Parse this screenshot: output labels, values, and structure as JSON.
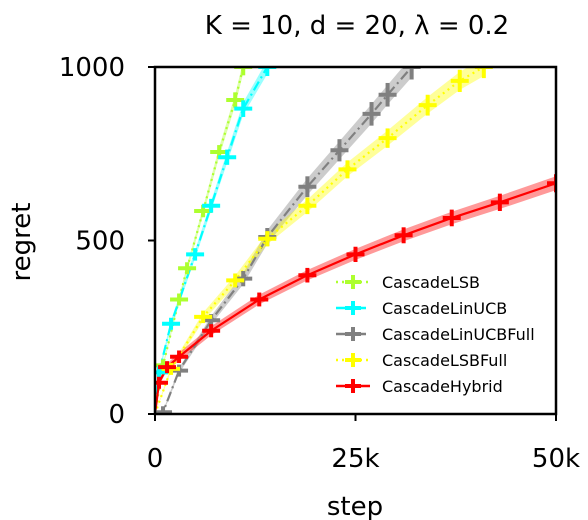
{
  "chart_data": {
    "type": "line",
    "title": "K = 10, d = 20, λ = 0.2",
    "xlabel": "step",
    "ylabel": "regret",
    "xlim": [
      0,
      50000
    ],
    "ylim": [
      0,
      1000
    ],
    "xticks": [
      0,
      25000,
      50000
    ],
    "xtick_labels": [
      "0",
      "25k",
      "50k"
    ],
    "yticks": [
      0,
      500,
      1000
    ],
    "ytick_labels": [
      "0",
      "500",
      "1000"
    ],
    "grid": false,
    "legend_position": "lower-right",
    "series": [
      {
        "name": "CascadeLSB",
        "color": "#adff2f",
        "linestyle": "dotted",
        "x": [
          0,
          1000,
          3000,
          4000,
          6000,
          8000,
          10000,
          11000
        ],
        "y": [
          0,
          140,
          330,
          420,
          585,
          755,
          905,
          1000
        ],
        "err": [
          0,
          6,
          8,
          10,
          12,
          14,
          16,
          18
        ]
      },
      {
        "name": "CascadeLinUCB",
        "color": "#00ffff",
        "linestyle": "dashdot",
        "x": [
          0,
          500,
          2000,
          5000,
          7000,
          9000,
          11000,
          14000
        ],
        "y": [
          0,
          120,
          260,
          460,
          600,
          740,
          880,
          1000
        ],
        "err": [
          0,
          6,
          10,
          12,
          14,
          16,
          18,
          20
        ]
      },
      {
        "name": "CascadeLinUCBFull",
        "color": "#808080",
        "linestyle": "dashdot",
        "x": [
          0,
          1000,
          3000,
          7000,
          11000,
          14000,
          19000,
          23000,
          27000,
          29000,
          32000
        ],
        "y": [
          0,
          5,
          125,
          270,
          390,
          510,
          655,
          760,
          865,
          920,
          1000
        ],
        "err": [
          0,
          4,
          8,
          12,
          16,
          20,
          24,
          26,
          28,
          28,
          30
        ]
      },
      {
        "name": "CascadeLSBFull",
        "color": "#ffff00",
        "linestyle": "dotted",
        "x": [
          0,
          2000,
          6000,
          10000,
          14000,
          19000,
          24000,
          29000,
          34000,
          38000,
          41000
        ],
        "y": [
          0,
          130,
          280,
          385,
          505,
          600,
          705,
          795,
          890,
          960,
          1000
        ],
        "err": [
          0,
          8,
          12,
          14,
          16,
          18,
          20,
          22,
          24,
          26,
          26
        ]
      },
      {
        "name": "CascadeHybrid",
        "color": "#ff0000",
        "linestyle": "solid",
        "x": [
          0,
          500,
          1500,
          3000,
          7000,
          13000,
          19000,
          25000,
          31000,
          37000,
          43000,
          50000
        ],
        "y": [
          0,
          90,
          135,
          165,
          240,
          330,
          400,
          460,
          515,
          565,
          610,
          665
        ],
        "err": [
          0,
          8,
          10,
          12,
          13,
          14,
          15,
          16,
          17,
          18,
          19,
          20
        ]
      }
    ]
  }
}
